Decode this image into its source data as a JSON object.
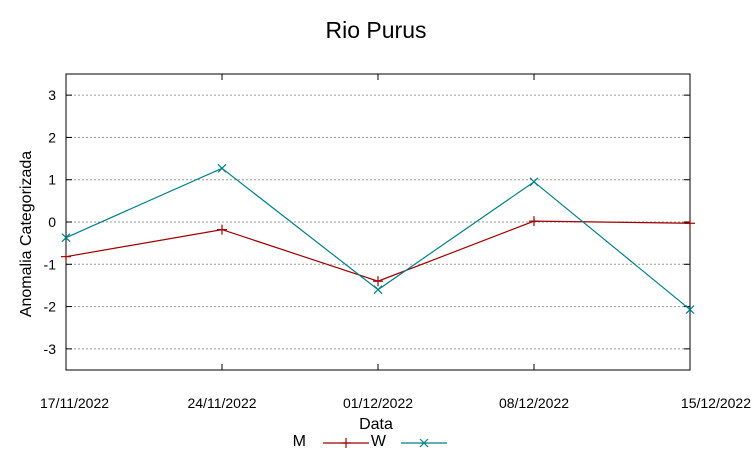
{
  "chart_data": {
    "type": "line",
    "title": "Rio Purus",
    "xlabel": "Data",
    "ylabel": "Anomalia Categorizada",
    "categories": [
      "17/11/2022",
      "24/11/2022",
      "01/12/2022",
      "08/12/2022",
      "15/12/2022"
    ],
    "ylim": [
      -3.5,
      3.5
    ],
    "yticks": [
      -3,
      -2,
      -1,
      0,
      1,
      2,
      3
    ],
    "grid": true,
    "legend_position": "bottom",
    "series": [
      {
        "name": "M",
        "color": "#a00000",
        "marker": "plus",
        "values": [
          -0.82,
          -0.18,
          -1.4,
          0.02,
          -0.03
        ]
      },
      {
        "name": "W",
        "color": "#00808a",
        "marker": "cross",
        "values": [
          -0.37,
          1.27,
          -1.6,
          0.95,
          -2.07
        ]
      }
    ]
  }
}
